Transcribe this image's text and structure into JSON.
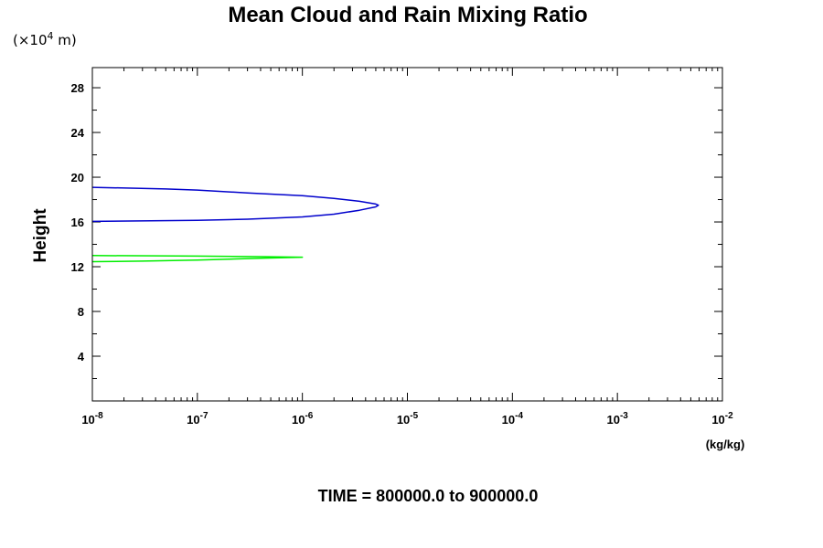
{
  "chart_data": {
    "type": "line",
    "title": "Mean Cloud and Rain Mixing Ratio",
    "ylabel": "Height",
    "y_scale_note": {
      "prefix": "(×10",
      "exponent": "4",
      "suffix": " m)"
    },
    "xlabel": "(kg/kg)",
    "x_scale": "log",
    "xlim": [
      1e-08,
      0.01
    ],
    "ylim": [
      0,
      29.8
    ],
    "x_ticks": [
      {
        "base": "10",
        "exp": "-8",
        "value": 1e-08
      },
      {
        "base": "10",
        "exp": "-7",
        "value": 1e-07
      },
      {
        "base": "10",
        "exp": "-6",
        "value": 1e-06
      },
      {
        "base": "10",
        "exp": "-5",
        "value": 1e-05
      },
      {
        "base": "10",
        "exp": "-4",
        "value": 0.0001
      },
      {
        "base": "10",
        "exp": "-3",
        "value": 0.001
      },
      {
        "base": "10",
        "exp": "-2",
        "value": 0.01
      }
    ],
    "y_ticks": [
      "4",
      "8",
      "12",
      "16",
      "20",
      "24",
      "28"
    ],
    "caption": "TIME = 800000.0 to 900000.0",
    "series": [
      {
        "color": "#0000cc",
        "points": [
          [
            1e-08,
            19.1
          ],
          [
            5e-08,
            18.95
          ],
          [
            1e-07,
            18.85
          ],
          [
            3e-07,
            18.6
          ],
          [
            1e-06,
            18.35
          ],
          [
            2e-06,
            18.1
          ],
          [
            3.5e-06,
            17.85
          ],
          [
            5e-06,
            17.6
          ],
          [
            5.3e-06,
            17.5
          ],
          [
            5e-06,
            17.35
          ],
          [
            3.5e-06,
            17.05
          ],
          [
            2e-06,
            16.7
          ],
          [
            1e-06,
            16.45
          ],
          [
            3e-07,
            16.25
          ],
          [
            1e-07,
            16.15
          ],
          [
            1e-08,
            16.05
          ]
        ]
      },
      {
        "color": "#00ee00",
        "points": [
          [
            1e-08,
            13.0
          ],
          [
            1e-07,
            12.95
          ],
          [
            4e-07,
            12.9
          ],
          [
            1e-06,
            12.85
          ],
          [
            4e-07,
            12.75
          ],
          [
            1e-07,
            12.6
          ],
          [
            3e-08,
            12.5
          ],
          [
            1e-08,
            12.45
          ]
        ]
      }
    ]
  }
}
